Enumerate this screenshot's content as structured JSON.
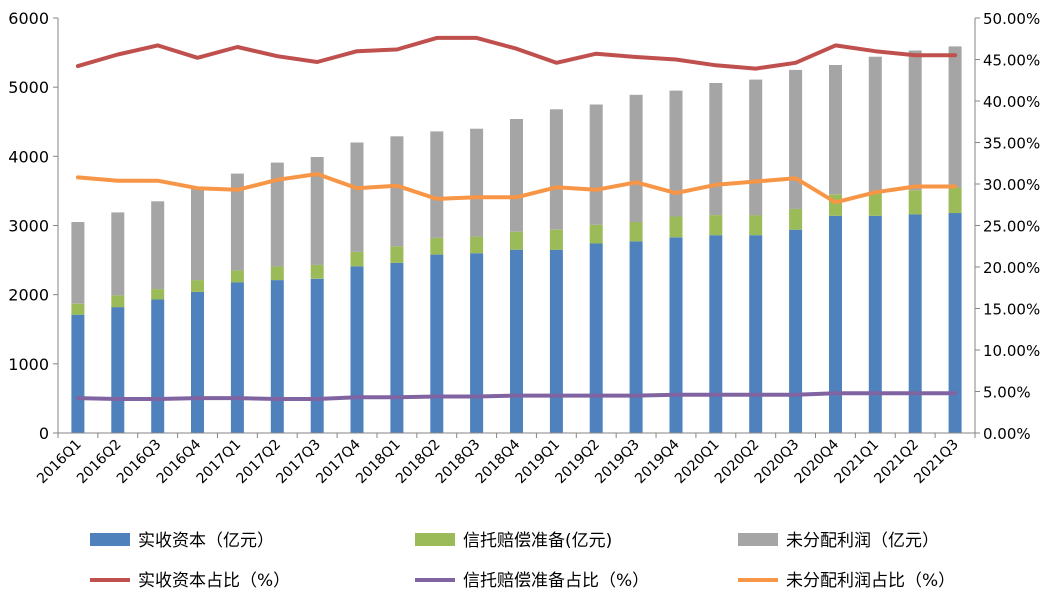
{
  "chart_data": {
    "type": "bar",
    "stacked": true,
    "categories": [
      "2016Q1",
      "2016Q2",
      "2016Q3",
      "2016Q4",
      "2017Q1",
      "2017Q2",
      "2017Q3",
      "2017Q4",
      "2018Q1",
      "2018Q2",
      "2018Q3",
      "2018Q4",
      "2019Q1",
      "2019Q2",
      "2019Q3",
      "2019Q4",
      "2020Q1",
      "2020Q2",
      "2020Q3",
      "2020Q4",
      "2021Q1",
      "2021Q2",
      "2021Q3"
    ],
    "y_left": {
      "min": 0,
      "max": 6000,
      "ticks": [
        0,
        1000,
        2000,
        3000,
        4000,
        5000,
        6000
      ],
      "tick_labels": [
        "0",
        "1000",
        "2000",
        "3000",
        "4000",
        "5000",
        "6000"
      ]
    },
    "y_right": {
      "min": 0,
      "max": 0.5,
      "ticks": [
        0,
        0.05,
        0.1,
        0.15,
        0.2,
        0.25,
        0.3,
        0.35,
        0.4,
        0.45,
        0.5
      ],
      "tick_labels": [
        "0.00%",
        "5.00%",
        "10.00%",
        "15.00%",
        "20.00%",
        "25.00%",
        "30.00%",
        "35.00%",
        "40.00%",
        "45.00%",
        "50.00%"
      ]
    },
    "bar_series": [
      {
        "name": "实收资本（亿元）",
        "color": "#4F81BD",
        "values": [
          1710,
          1820,
          1930,
          2040,
          2180,
          2210,
          2230,
          2410,
          2460,
          2580,
          2600,
          2650,
          2650,
          2740,
          2770,
          2830,
          2860,
          2860,
          2940,
          3140,
          3140,
          3160,
          3180
        ]
      },
      {
        "name": "信托赔偿准备(亿元)",
        "color": "#9BBB59",
        "values": [
          160,
          170,
          150,
          170,
          170,
          200,
          200,
          210,
          240,
          240,
          240,
          260,
          290,
          270,
          280,
          300,
          290,
          290,
          300,
          310,
          330,
          350,
          370
        ]
      },
      {
        "name": "未分配利润（亿元）",
        "color": "#A5A5A5",
        "values": [
          1180,
          1200,
          1270,
          1340,
          1400,
          1500,
          1560,
          1580,
          1590,
          1540,
          1560,
          1630,
          1740,
          1740,
          1840,
          1820,
          1910,
          1960,
          2010,
          1870,
          1970,
          2020,
          2040
        ]
      }
    ],
    "line_series": [
      {
        "name": "实收资本占比（%）",
        "color": "#C0504D",
        "values": [
          0.442,
          0.456,
          0.467,
          0.452,
          0.465,
          0.454,
          0.447,
          0.46,
          0.462,
          0.476,
          0.476,
          0.463,
          0.446,
          0.457,
          0.453,
          0.45,
          0.443,
          0.439,
          0.446,
          0.467,
          0.46,
          0.455,
          0.455
        ]
      },
      {
        "name": "信托赔偿准备占比（%）",
        "color": "#8064A2",
        "values": [
          0.042,
          0.041,
          0.041,
          0.042,
          0.042,
          0.041,
          0.041,
          0.043,
          0.043,
          0.044,
          0.044,
          0.045,
          0.045,
          0.045,
          0.045,
          0.046,
          0.046,
          0.046,
          0.046,
          0.048,
          0.048,
          0.048,
          0.048
        ]
      },
      {
        "name": "未分配利润占比（%）",
        "color": "#F79646",
        "values": [
          0.308,
          0.304,
          0.304,
          0.295,
          0.293,
          0.305,
          0.312,
          0.295,
          0.298,
          0.282,
          0.284,
          0.284,
          0.296,
          0.293,
          0.302,
          0.289,
          0.299,
          0.303,
          0.307,
          0.278,
          0.29,
          0.297,
          0.297
        ]
      }
    ],
    "title": "",
    "xlabel": "",
    "ylabel": "",
    "grid": false,
    "legend_position": "bottom"
  }
}
